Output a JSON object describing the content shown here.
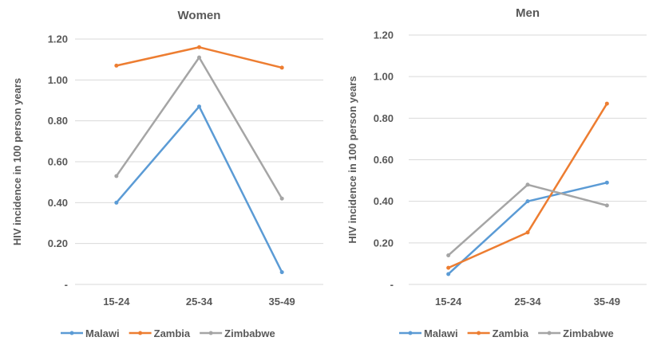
{
  "chart_data": [
    {
      "type": "line",
      "title": "Women",
      "xlabel": "",
      "ylabel": "HIV incidence in 100 person years",
      "categories": [
        "15-24",
        "25-34",
        "35-49"
      ],
      "ylim": [
        0,
        1.2
      ],
      "yticks": [
        "-",
        "0.20",
        "0.40",
        "0.60",
        "0.80",
        "1.00",
        "1.20"
      ],
      "grid": true,
      "legend_position": "bottom",
      "series": [
        {
          "name": "Malawi",
          "color": "#5b9bd5",
          "values": [
            0.4,
            0.87,
            0.06
          ]
        },
        {
          "name": "Zambia",
          "color": "#ed7d31",
          "values": [
            1.07,
            1.16,
            1.06
          ]
        },
        {
          "name": "Zimbabwe",
          "color": "#a5a5a5",
          "values": [
            0.53,
            1.11,
            0.42
          ]
        }
      ]
    },
    {
      "type": "line",
      "title": "Men",
      "xlabel": "",
      "ylabel": "HIV incidence in 100 person years",
      "categories": [
        "15-24",
        "25-34",
        "35-49"
      ],
      "ylim": [
        0,
        1.2
      ],
      "yticks": [
        "-",
        "0.20",
        "0.40",
        "0.60",
        "0.80",
        "1.00",
        "1.20"
      ],
      "grid": true,
      "legend_position": "bottom",
      "series": [
        {
          "name": "Malawi",
          "color": "#5b9bd5",
          "values": [
            0.05,
            0.4,
            0.49
          ]
        },
        {
          "name": "Zambia",
          "color": "#ed7d31",
          "values": [
            0.08,
            0.25,
            0.87
          ]
        },
        {
          "name": "Zimbabwe",
          "color": "#a5a5a5",
          "values": [
            0.14,
            0.48,
            0.38
          ]
        }
      ]
    }
  ]
}
